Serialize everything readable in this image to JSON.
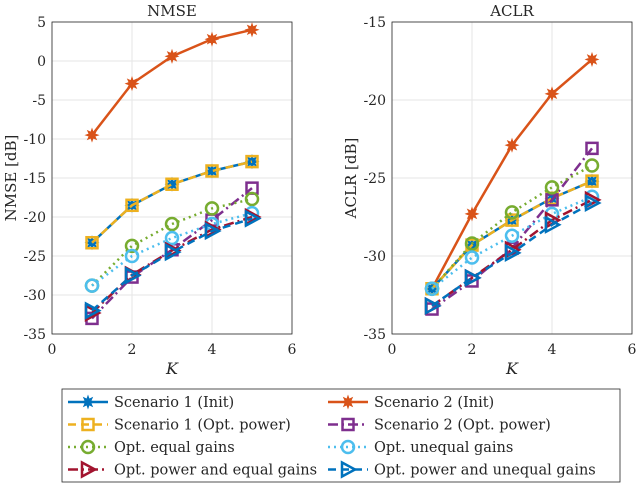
{
  "chart_data": [
    {
      "type": "line",
      "title": "NMSE",
      "xlabel": "K",
      "ylabel": "NMSE [dB]",
      "xlim": [
        0,
        6
      ],
      "ylim": [
        -35,
        5
      ],
      "xticks": [
        "0",
        "2",
        "4",
        "6"
      ],
      "yticks": [
        "5",
        "0",
        "-5",
        "-10",
        "-15",
        "-20",
        "-25",
        "-30",
        "-35"
      ],
      "grid": true,
      "x": [
        1,
        2,
        3,
        4,
        5
      ],
      "series": [
        {
          "name": "Scenario 1 (Init)",
          "values": [
            -23.3,
            -18.5,
            -15.8,
            -14.1,
            -12.9
          ]
        },
        {
          "name": "Scenario 2 (Init)",
          "values": [
            -9.5,
            -2.9,
            0.6,
            2.8,
            4.0
          ]
        },
        {
          "name": "Scenario 1 (Opt. power)",
          "values": [
            -23.3,
            -18.5,
            -15.8,
            -14.1,
            -12.9
          ]
        },
        {
          "name": "Scenario 2 (Opt. power)",
          "values": [
            -33.0,
            -27.7,
            -24.2,
            -20.4,
            -16.3
          ]
        },
        {
          "name": "Opt. equal gains",
          "values": [
            -28.8,
            -23.7,
            -20.9,
            -18.9,
            -17.7
          ]
        },
        {
          "name": "Opt. unequal gains",
          "values": [
            -28.8,
            -25.0,
            -22.7,
            -20.9,
            -19.5
          ]
        },
        {
          "name": "Opt. power and equal gains",
          "values": [
            -32.3,
            -27.4,
            -24.3,
            -21.6,
            -20.0
          ]
        },
        {
          "name": "Opt. power and unequal gains",
          "values": [
            -32.0,
            -27.5,
            -24.5,
            -21.8,
            -20.2
          ]
        }
      ]
    },
    {
      "type": "line",
      "title": "ACLR",
      "xlabel": "K",
      "ylabel": "ACLR [dB]",
      "xlim": [
        0,
        6
      ],
      "ylim": [
        -35,
        -15
      ],
      "xticks": [
        "0",
        "2",
        "4",
        "6"
      ],
      "yticks": [
        "-15",
        "-20",
        "-25",
        "-30",
        "-35"
      ],
      "grid": true,
      "x": [
        1,
        2,
        3,
        4,
        5
      ],
      "series": [
        {
          "name": "Scenario 1 (Init)",
          "values": [
            -32.1,
            -29.3,
            -27.7,
            -26.3,
            -25.2
          ]
        },
        {
          "name": "Scenario 2 (Init)",
          "values": [
            -32.1,
            -27.3,
            -22.9,
            -19.6,
            -17.4
          ]
        },
        {
          "name": "Scenario 1 (Opt. power)",
          "values": [
            -32.1,
            -29.3,
            -27.7,
            -26.3,
            -25.2
          ]
        },
        {
          "name": "Scenario 2 (Opt. power)",
          "values": [
            -33.4,
            -31.6,
            -29.5,
            -26.4,
            -23.1
          ]
        },
        {
          "name": "Opt. equal gains",
          "values": [
            -32.1,
            -29.2,
            -27.2,
            -25.6,
            -24.2
          ]
        },
        {
          "name": "Opt. unequal gains",
          "values": [
            -32.1,
            -30.1,
            -28.7,
            -27.3,
            -26.2
          ]
        },
        {
          "name": "Opt. power and equal gains",
          "values": [
            -33.2,
            -31.4,
            -29.6,
            -27.7,
            -26.4
          ]
        },
        {
          "name": "Opt. power and unequal gains",
          "values": [
            -33.2,
            -31.4,
            -29.8,
            -28.0,
            -26.6
          ]
        }
      ]
    }
  ],
  "styles": [
    {
      "color": "#0072BD",
      "dash": "",
      "marker": "star"
    },
    {
      "color": "#D95319",
      "dash": "",
      "marker": "star"
    },
    {
      "color": "#EDB120",
      "dash": "8 5",
      "marker": "square"
    },
    {
      "color": "#7E2F8E",
      "dash": "10 4 2 4",
      "marker": "square"
    },
    {
      "color": "#77AC30",
      "dash": "2 4",
      "marker": "circle"
    },
    {
      "color": "#4DBEEE",
      "dash": "2 4",
      "marker": "circle"
    },
    {
      "color": "#A2142F",
      "dash": "10 4 2 4",
      "marker": "triangle-right"
    },
    {
      "color": "#0072BD",
      "dash": "8 5",
      "marker": "triangle-right"
    }
  ],
  "legend": {
    "placement": "bottom",
    "labels": [
      "Scenario 1 (Init)",
      "Scenario 2 (Init)",
      "Scenario 1 (Opt. power)",
      "Scenario 2 (Opt. power)",
      "Opt. equal gains",
      "Opt. unequal gains",
      "Opt. power and equal gains",
      "Opt. power and unequal gains"
    ]
  }
}
